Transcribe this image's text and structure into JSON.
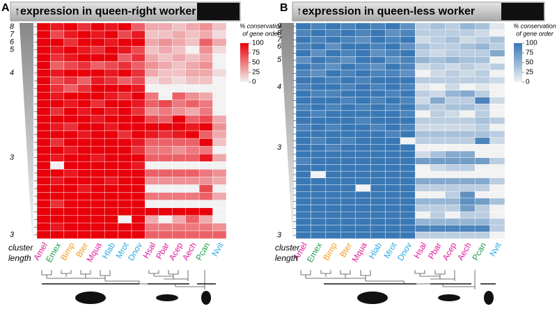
{
  "chart_data": [
    {
      "type": "heatmap",
      "panel_label": "A",
      "title": "↑expression in queen-right worker",
      "categories": [
        "Amel",
        "Emex",
        "Bimp",
        "Bter",
        "Mqua",
        "Hlab",
        "Mrot",
        "Dnov",
        "Hsal",
        "Pbar",
        "Acep",
        "Aech",
        "Pcan",
        "Nvit"
      ],
      "category_colors": [
        "#e0169b",
        "#1a9c4a",
        "#f39a1e",
        "#f39a1e",
        "#e0169b",
        "#29a9e0",
        "#29a9e0",
        "#29a9e0",
        "#e0169b",
        "#e0169b",
        "#e0169b",
        "#e0169b",
        "#1a9c4a",
        "#29a9e0"
      ],
      "y_label": [
        "cluster",
        "length"
      ],
      "y_categories": [
        "8",
        "7",
        "6",
        "5",
        null,
        null,
        "4",
        null,
        null,
        null,
        null,
        null,
        null,
        null,
        null,
        null,
        null,
        "3",
        null,
        null,
        null,
        null,
        null,
        null,
        null,
        null,
        null,
        "3"
      ],
      "color_low": "#f2f2f2",
      "color_high": "#e8000a",
      "zlim": [
        0,
        100
      ],
      "zticks": [
        100,
        75,
        50,
        25,
        0
      ],
      "colorbar_label": [
        "% conservation",
        "of gene order"
      ],
      "values": [
        [
          100,
          90,
          100,
          80,
          100,
          90,
          100,
          60,
          30,
          30,
          20,
          30,
          40,
          20
        ],
        [
          100,
          70,
          90,
          100,
          90,
          100,
          70,
          90,
          20,
          20,
          30,
          20,
          30,
          10
        ],
        [
          100,
          100,
          80,
          100,
          100,
          90,
          100,
          100,
          30,
          40,
          30,
          20,
          60,
          30
        ],
        [
          100,
          90,
          100,
          90,
          80,
          100,
          90,
          70,
          20,
          30,
          20,
          0,
          40,
          10
        ],
        [
          100,
          80,
          90,
          100,
          100,
          100,
          60,
          80,
          30,
          20,
          30,
          20,
          30,
          0
        ],
        [
          100,
          60,
          70,
          80,
          60,
          70,
          80,
          60,
          40,
          30,
          20,
          30,
          40,
          0
        ],
        [
          100,
          90,
          100,
          100,
          100,
          90,
          100,
          80,
          30,
          20,
          20,
          30,
          30,
          10
        ],
        [
          100,
          70,
          80,
          60,
          90,
          80,
          60,
          70,
          10,
          20,
          10,
          20,
          20,
          0
        ],
        [
          100,
          80,
          60,
          80,
          100,
          100,
          100,
          90,
          0,
          0,
          0,
          0,
          0,
          0
        ],
        [
          100,
          90,
          100,
          100,
          100,
          90,
          80,
          100,
          50,
          0,
          60,
          40,
          30,
          0
        ],
        [
          100,
          100,
          90,
          100,
          80,
          100,
          100,
          90,
          60,
          70,
          50,
          60,
          50,
          0
        ],
        [
          100,
          80,
          100,
          90,
          100,
          90,
          100,
          80,
          40,
          50,
          40,
          30,
          50,
          0
        ],
        [
          100,
          100,
          100,
          100,
          90,
          100,
          100,
          100,
          70,
          60,
          100,
          60,
          70,
          30
        ],
        [
          100,
          90,
          80,
          100,
          100,
          90,
          100,
          100,
          100,
          100,
          100,
          90,
          100,
          40
        ],
        [
          100,
          100,
          100,
          90,
          100,
          100,
          80,
          100,
          90,
          80,
          90,
          100,
          60,
          30
        ],
        [
          100,
          80,
          100,
          100,
          100,
          100,
          100,
          90,
          60,
          60,
          60,
          60,
          100,
          20
        ],
        [
          100,
          100,
          90,
          100,
          100,
          100,
          100,
          80,
          50,
          50,
          40,
          50,
          50,
          0
        ],
        [
          100,
          90,
          100,
          100,
          90,
          100,
          100,
          100,
          60,
          60,
          60,
          60,
          90,
          30
        ],
        [
          100,
          0,
          100,
          100,
          100,
          100,
          100,
          90,
          0,
          0,
          0,
          0,
          0,
          0
        ],
        [
          100,
          100,
          90,
          100,
          100,
          100,
          100,
          100,
          60,
          60,
          60,
          60,
          50,
          40
        ],
        [
          100,
          90,
          100,
          100,
          100,
          90,
          100,
          100,
          40,
          40,
          40,
          40,
          40,
          30
        ],
        [
          100,
          100,
          100,
          90,
          100,
          100,
          100,
          100,
          0,
          0,
          0,
          0,
          70,
          0
        ],
        [
          100,
          100,
          100,
          100,
          100,
          100,
          100,
          100,
          50,
          50,
          50,
          50,
          60,
          30
        ],
        [
          100,
          80,
          100,
          100,
          100,
          100,
          100,
          100,
          0,
          0,
          0,
          0,
          0,
          0
        ],
        [
          100,
          100,
          100,
          100,
          100,
          100,
          100,
          100,
          100,
          100,
          100,
          100,
          100,
          0
        ],
        [
          100,
          100,
          100,
          100,
          100,
          100,
          0,
          100,
          30,
          0,
          30,
          60,
          30,
          0
        ],
        [
          100,
          90,
          100,
          100,
          100,
          100,
          100,
          100,
          50,
          50,
          50,
          50,
          50,
          40
        ],
        [
          100,
          100,
          100,
          100,
          100,
          100,
          100,
          100,
          60,
          60,
          60,
          60,
          60,
          60
        ]
      ]
    },
    {
      "type": "heatmap",
      "panel_label": "B",
      "title": "↑expression in queen-less worker",
      "categories": [
        "Amel",
        "Emex",
        "Bimp",
        "Bter",
        "Mqua",
        "Hlab",
        "Mrot",
        "Dnov",
        "Hsal",
        "Pbar",
        "Acep",
        "Aech",
        "Pcan",
        "Nvit"
      ],
      "category_colors": [
        "#e0169b",
        "#1a9c4a",
        "#f39a1e",
        "#f39a1e",
        "#e0169b",
        "#29a9e0",
        "#29a9e0",
        "#29a9e0",
        "#e0169b",
        "#e0169b",
        "#e0169b",
        "#e0169b",
        "#1a9c4a",
        "#29a9e0"
      ],
      "y_label": [
        "cluster",
        "length"
      ],
      "y_categories": [
        "9",
        "8",
        "7",
        "6",
        null,
        "5",
        null,
        null,
        null,
        "4",
        null,
        null,
        null,
        null,
        null,
        null,
        null,
        null,
        "3",
        null,
        null,
        null,
        null,
        null,
        null,
        null,
        null,
        null,
        null,
        null,
        null,
        "3"
      ],
      "color_low": "#f2f2f2",
      "color_high": "#3a78b5",
      "zlim": [
        0,
        100
      ],
      "zticks": [
        100,
        75,
        50,
        25,
        0
      ],
      "colorbar_label": [
        "% conservation",
        "of gene order"
      ],
      "values": [
        [
          100,
          90,
          100,
          90,
          100,
          90,
          100,
          80,
          30,
          40,
          30,
          50,
          40,
          10
        ],
        [
          90,
          100,
          90,
          100,
          90,
          100,
          80,
          90,
          30,
          30,
          30,
          30,
          20,
          0
        ],
        [
          100,
          90,
          100,
          90,
          80,
          100,
          90,
          100,
          20,
          30,
          40,
          20,
          30,
          40
        ],
        [
          90,
          100,
          80,
          100,
          100,
          90,
          100,
          80,
          40,
          30,
          30,
          40,
          50,
          30
        ],
        [
          100,
          80,
          100,
          90,
          100,
          80,
          90,
          100,
          30,
          20,
          30,
          30,
          30,
          60
        ],
        [
          80,
          100,
          90,
          80,
          100,
          100,
          80,
          90,
          50,
          40,
          50,
          40,
          40,
          0
        ],
        [
          100,
          90,
          80,
          100,
          90,
          80,
          100,
          90,
          20,
          30,
          20,
          30,
          20,
          30
        ],
        [
          90,
          80,
          100,
          90,
          100,
          90,
          90,
          80,
          0,
          20,
          30,
          20,
          30,
          0
        ],
        [
          100,
          100,
          90,
          100,
          90,
          100,
          100,
          100,
          30,
          30,
          30,
          30,
          30,
          20
        ],
        [
          90,
          100,
          100,
          90,
          100,
          90,
          100,
          90,
          10,
          0,
          20,
          0,
          10,
          0
        ],
        [
          100,
          90,
          90,
          100,
          100,
          100,
          90,
          100,
          30,
          20,
          50,
          60,
          30,
          0
        ],
        [
          100,
          100,
          100,
          90,
          100,
          90,
          100,
          90,
          20,
          60,
          30,
          30,
          90,
          20
        ],
        [
          90,
          100,
          90,
          100,
          90,
          100,
          90,
          100,
          40,
          30,
          40,
          40,
          30,
          0
        ],
        [
          100,
          90,
          100,
          100,
          100,
          100,
          100,
          90,
          0,
          30,
          20,
          0,
          30,
          0
        ],
        [
          100,
          100,
          100,
          100,
          90,
          100,
          100,
          100,
          30,
          30,
          30,
          30,
          40,
          30
        ],
        [
          90,
          100,
          90,
          100,
          100,
          90,
          100,
          90,
          20,
          20,
          20,
          20,
          30,
          0
        ],
        [
          100,
          100,
          100,
          100,
          100,
          100,
          90,
          100,
          40,
          40,
          40,
          40,
          40,
          30
        ],
        [
          100,
          90,
          100,
          90,
          100,
          100,
          100,
          0,
          30,
          30,
          30,
          30,
          90,
          20
        ],
        [
          100,
          100,
          90,
          100,
          100,
          100,
          100,
          100,
          0,
          0,
          0,
          0,
          0,
          0
        ],
        [
          100,
          100,
          100,
          100,
          100,
          100,
          100,
          100,
          20,
          40,
          60,
          60,
          0,
          0
        ],
        [
          90,
          100,
          100,
          100,
          100,
          100,
          100,
          100,
          70,
          70,
          70,
          70,
          70,
          30
        ],
        [
          100,
          100,
          100,
          100,
          100,
          100,
          100,
          100,
          0,
          20,
          30,
          30,
          0,
          0
        ],
        [
          100,
          0,
          100,
          100,
          100,
          100,
          100,
          100,
          0,
          0,
          0,
          0,
          0,
          0
        ],
        [
          100,
          100,
          100,
          100,
          100,
          100,
          100,
          100,
          60,
          60,
          60,
          60,
          60,
          30
        ],
        [
          100,
          100,
          100,
          100,
          0,
          100,
          100,
          100,
          30,
          30,
          30,
          30,
          30,
          0
        ],
        [
          100,
          100,
          100,
          100,
          100,
          100,
          100,
          100,
          0,
          0,
          30,
          80,
          0,
          0
        ],
        [
          100,
          100,
          100,
          100,
          100,
          100,
          100,
          100,
          50,
          50,
          50,
          80,
          70,
          40
        ],
        [
          100,
          100,
          100,
          100,
          100,
          100,
          100,
          100,
          30,
          30,
          30,
          70,
          30,
          0
        ],
        [
          100,
          100,
          100,
          100,
          100,
          100,
          100,
          100,
          0,
          30,
          0,
          30,
          30,
          0
        ],
        [
          100,
          100,
          100,
          100,
          100,
          100,
          100,
          100,
          50,
          50,
          50,
          50,
          50,
          30
        ],
        [
          100,
          100,
          100,
          100,
          100,
          100,
          100,
          100,
          90,
          90,
          90,
          90,
          90,
          30
        ],
        [
          100,
          100,
          100,
          100,
          100,
          100,
          100,
          100,
          30,
          30,
          30,
          30,
          30,
          0
        ]
      ]
    }
  ]
}
